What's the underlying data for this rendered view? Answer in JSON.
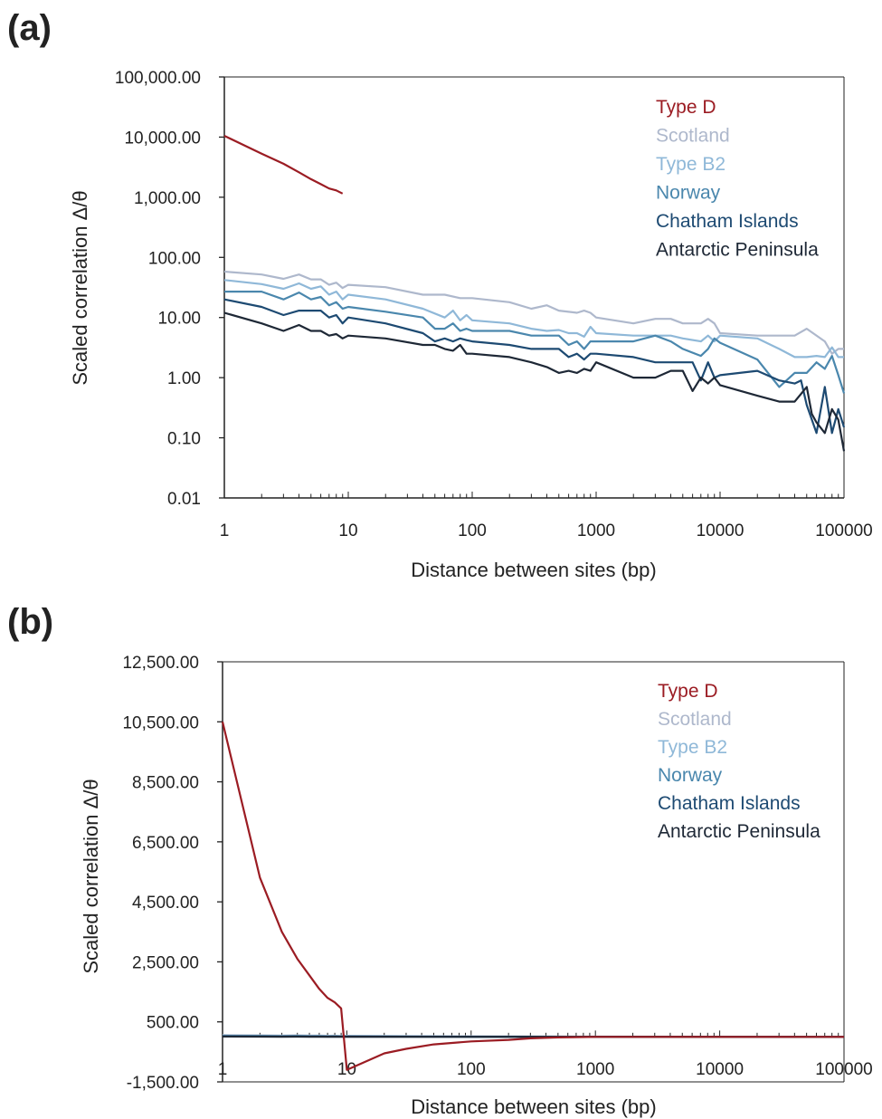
{
  "chart_data": [
    {
      "panel_label": "(a)",
      "type": "line",
      "x_scale": "log",
      "y_scale": "log",
      "xlim": [
        1,
        100000
      ],
      "ylim": [
        0.01,
        100000
      ],
      "xlabel": "Distance between sites (bp)",
      "ylabel": "Scaled correlation  Δ/θ",
      "x_ticks": [
        {
          "value": 1,
          "label": "1"
        },
        {
          "value": 10,
          "label": "10"
        },
        {
          "value": 100,
          "label": "100"
        },
        {
          "value": 1000,
          "label": "1000"
        },
        {
          "value": 10000,
          "label": "10000"
        },
        {
          "value": 100000,
          "label": "100000"
        }
      ],
      "y_ticks": [
        {
          "value": 100000,
          "label": "100,000.00"
        },
        {
          "value": 10000,
          "label": "10,000.00"
        },
        {
          "value": 1000,
          "label": "1,000.00"
        },
        {
          "value": 100,
          "label": "100.00"
        },
        {
          "value": 10,
          "label": "10.00"
        },
        {
          "value": 1,
          "label": "1.00"
        },
        {
          "value": 0.1,
          "label": "0.10"
        },
        {
          "value": 0.01,
          "label": "0.01"
        }
      ],
      "legend_position": "top-right",
      "series": [
        {
          "name": "Type D",
          "color": "#9B1C23",
          "x": [
            1,
            2,
            3,
            4,
            5,
            6,
            7,
            8,
            9
          ],
          "y": [
            10500,
            5300,
            3600,
            2600,
            2000,
            1650,
            1400,
            1300,
            1150
          ]
        },
        {
          "name": "Scotland",
          "color": "#AEB8CC",
          "x": [
            1,
            2,
            3,
            4,
            5,
            6,
            7,
            8,
            9,
            10,
            20,
            40,
            60,
            80,
            100,
            200,
            300,
            400,
            500,
            700,
            800,
            900,
            1000,
            2000,
            3000,
            4000,
            5000,
            7000,
            8000,
            9000,
            10000,
            20000,
            40000,
            50000,
            70000,
            80000,
            90000,
            100000
          ],
          "y": [
            58,
            52,
            44,
            52,
            43,
            43,
            35,
            38,
            31,
            35,
            32,
            24,
            24,
            21,
            21,
            18,
            14,
            16,
            13,
            12,
            13,
            12,
            10,
            8,
            9.5,
            9.5,
            8,
            8,
            9.5,
            8,
            5.5,
            5,
            5,
            6.5,
            4,
            2.5,
            3,
            3
          ]
        },
        {
          "name": "Type B2",
          "color": "#8FB8D8",
          "x": [
            1,
            2,
            3,
            4,
            5,
            6,
            7,
            8,
            9,
            10,
            20,
            40,
            60,
            70,
            80,
            90,
            100,
            200,
            300,
            400,
            500,
            600,
            700,
            800,
            900,
            1000,
            2000,
            3000,
            4000,
            5000,
            7000,
            8000,
            9000,
            10000,
            20000,
            30000,
            40000,
            50000,
            60000,
            70000,
            80000,
            90000,
            100000
          ],
          "y": [
            42,
            36,
            30,
            37,
            30,
            33,
            24,
            27,
            20,
            24,
            20,
            14,
            10,
            13,
            9,
            11,
            9,
            8,
            6.5,
            6,
            6.2,
            5.5,
            5.5,
            4.8,
            7,
            5.5,
            5,
            5,
            5,
            4.5,
            4,
            5,
            4,
            5,
            4.5,
            3,
            2.2,
            2.2,
            2.3,
            2.2,
            3.2,
            2.2,
            2.2
          ]
        },
        {
          "name": "Norway",
          "color": "#4A87AD",
          "x": [
            1,
            2,
            3,
            4,
            5,
            6,
            7,
            8,
            9,
            10,
            20,
            40,
            50,
            60,
            70,
            80,
            90,
            100,
            200,
            300,
            400,
            500,
            600,
            700,
            800,
            900,
            1000,
            2000,
            3000,
            4000,
            5000,
            7000,
            8000,
            9000,
            10000,
            20000,
            30000,
            40000,
            50000,
            60000,
            70000,
            80000,
            90000,
            100000
          ],
          "y": [
            27,
            27,
            20,
            26,
            20,
            22,
            16,
            18,
            14,
            15,
            12.5,
            10,
            6.5,
            6.5,
            8,
            6,
            6.5,
            6,
            6,
            5,
            5,
            5,
            3.5,
            4,
            3,
            4,
            4,
            4,
            5,
            4,
            3,
            2.3,
            3,
            4.5,
            3.8,
            2,
            0.7,
            1.2,
            1.2,
            1.8,
            1.4,
            2.3,
            1.1,
            0.55
          ]
        },
        {
          "name": "Chatham Islands",
          "color": "#1D4A72",
          "x": [
            1,
            2,
            3,
            4,
            5,
            6,
            7,
            8,
            9,
            10,
            20,
            40,
            50,
            60,
            70,
            80,
            90,
            100,
            200,
            300,
            400,
            500,
            600,
            700,
            800,
            900,
            1000,
            2000,
            3000,
            4000,
            5000,
            6000,
            7000,
            8000,
            9000,
            10000,
            20000,
            30000,
            40000,
            45000,
            50000,
            60000,
            70000,
            80000,
            90000,
            100000
          ],
          "y": [
            20,
            15,
            11,
            13,
            13,
            13,
            10,
            11,
            8,
            10,
            8,
            5.5,
            4,
            4.5,
            4,
            4.5,
            4.2,
            4,
            3.5,
            3,
            3,
            3,
            2.2,
            2.5,
            2,
            2.5,
            2.5,
            2.2,
            1.8,
            1.8,
            1.8,
            1.8,
            0.9,
            1.8,
            1,
            1.1,
            1.3,
            0.9,
            0.8,
            0.9,
            0.35,
            0.12,
            0.7,
            0.12,
            0.3,
            0.15
          ]
        },
        {
          "name": "Antarctic Peninsula",
          "color": "#1E2836",
          "x": [
            1,
            2,
            3,
            4,
            5,
            6,
            7,
            8,
            9,
            10,
            20,
            40,
            50,
            60,
            70,
            80,
            90,
            100,
            200,
            300,
            400,
            500,
            600,
            700,
            800,
            900,
            1000,
            2000,
            3000,
            4000,
            5000,
            6000,
            7000,
            8000,
            9000,
            10000,
            20000,
            30000,
            40000,
            50000,
            55000,
            60000,
            70000,
            80000,
            90000,
            100000
          ],
          "y": [
            12,
            8,
            6,
            7.5,
            6,
            6,
            5,
            5.3,
            4.5,
            5,
            4.5,
            3.5,
            3.5,
            3,
            2.8,
            3.5,
            2.5,
            2.5,
            2.2,
            1.8,
            1.5,
            1.2,
            1.3,
            1.2,
            1.4,
            1.3,
            1.8,
            1.0,
            1.0,
            1.3,
            1.3,
            0.6,
            1.0,
            0.8,
            1.0,
            0.75,
            0.5,
            0.4,
            0.4,
            0.7,
            0.25,
            0.18,
            0.12,
            0.3,
            0.2,
            0.06
          ]
        }
      ]
    },
    {
      "panel_label": "(b)",
      "type": "line",
      "x_scale": "log",
      "y_scale": "linear",
      "xlim": [
        1,
        100000
      ],
      "ylim": [
        -1500,
        12500
      ],
      "xlabel": "Distance between sites (bp)",
      "ylabel": "Scaled correlation  Δ/θ",
      "x_ticks": [
        {
          "value": 1,
          "label": "1"
        },
        {
          "value": 10,
          "label": "10"
        },
        {
          "value": 100,
          "label": "100"
        },
        {
          "value": 1000,
          "label": "1000"
        },
        {
          "value": 10000,
          "label": "10000"
        },
        {
          "value": 100000,
          "label": "100000"
        }
      ],
      "y_ticks": [
        {
          "value": 12500,
          "label": "12,500.00"
        },
        {
          "value": 10500,
          "label": "10,500.00"
        },
        {
          "value": 8500,
          "label": "8,500.00"
        },
        {
          "value": 6500,
          "label": "6,500.00"
        },
        {
          "value": 4500,
          "label": "4,500.00"
        },
        {
          "value": 2500,
          "label": "2,500.00"
        },
        {
          "value": 500,
          "label": "500.00"
        },
        {
          "value": -1500,
          "label": "-1,500.00"
        }
      ],
      "legend_position": "top-right",
      "series": [
        {
          "name": "Type D",
          "color": "#9B1C23",
          "x": [
            1,
            2,
            3,
            4,
            5,
            6,
            7,
            8,
            9,
            10,
            20,
            30,
            50,
            100,
            200,
            300,
            500,
            1000,
            10000,
            100000
          ],
          "y": [
            10500,
            5300,
            3500,
            2600,
            2050,
            1600,
            1300,
            1150,
            950,
            -1100,
            -550,
            -400,
            -250,
            -150,
            -100,
            -50,
            -20,
            0,
            0,
            0
          ]
        },
        {
          "name": "Scotland",
          "color": "#AEB8CC",
          "x": [
            1,
            2,
            3,
            4,
            5,
            6,
            7,
            8,
            9,
            10,
            100,
            1000,
            10000,
            100000
          ],
          "y": [
            58,
            52,
            44,
            52,
            43,
            43,
            35,
            38,
            31,
            35,
            21,
            10,
            5.5,
            3
          ]
        },
        {
          "name": "Type B2",
          "color": "#8FB8D8",
          "x": [
            1,
            2,
            3,
            4,
            5,
            6,
            7,
            8,
            9,
            10,
            100,
            1000,
            10000,
            100000
          ],
          "y": [
            42,
            36,
            30,
            37,
            30,
            33,
            24,
            27,
            20,
            24,
            9,
            5.5,
            5,
            2.2
          ]
        },
        {
          "name": "Norway",
          "color": "#4A87AD",
          "x": [
            1,
            2,
            3,
            4,
            5,
            6,
            7,
            8,
            9,
            10,
            100,
            1000,
            10000,
            100000
          ],
          "y": [
            27,
            27,
            20,
            26,
            20,
            22,
            16,
            18,
            14,
            15,
            6,
            4,
            3.8,
            0.55
          ]
        },
        {
          "name": "Chatham Islands",
          "color": "#1D4A72",
          "x": [
            1,
            2,
            3,
            4,
            5,
            6,
            7,
            8,
            9,
            10,
            100,
            1000,
            10000,
            50000,
            70000,
            80000,
            90000,
            100000
          ],
          "y": [
            20,
            15,
            11,
            13,
            13,
            13,
            10,
            11,
            8,
            10,
            4,
            2.5,
            1.1,
            0.35,
            0.7,
            0.12,
            0.3,
            0.15
          ]
        },
        {
          "name": "Antarctic Peninsula",
          "color": "#1E2836",
          "x": [
            1,
            2,
            3,
            4,
            5,
            6,
            7,
            8,
            9,
            10,
            100,
            1000,
            10000,
            100000
          ],
          "y": [
            12,
            8,
            6,
            7.5,
            6,
            6,
            5,
            5.3,
            4.5,
            5,
            2.5,
            1.8,
            0.75,
            0.06
          ]
        }
      ]
    }
  ]
}
